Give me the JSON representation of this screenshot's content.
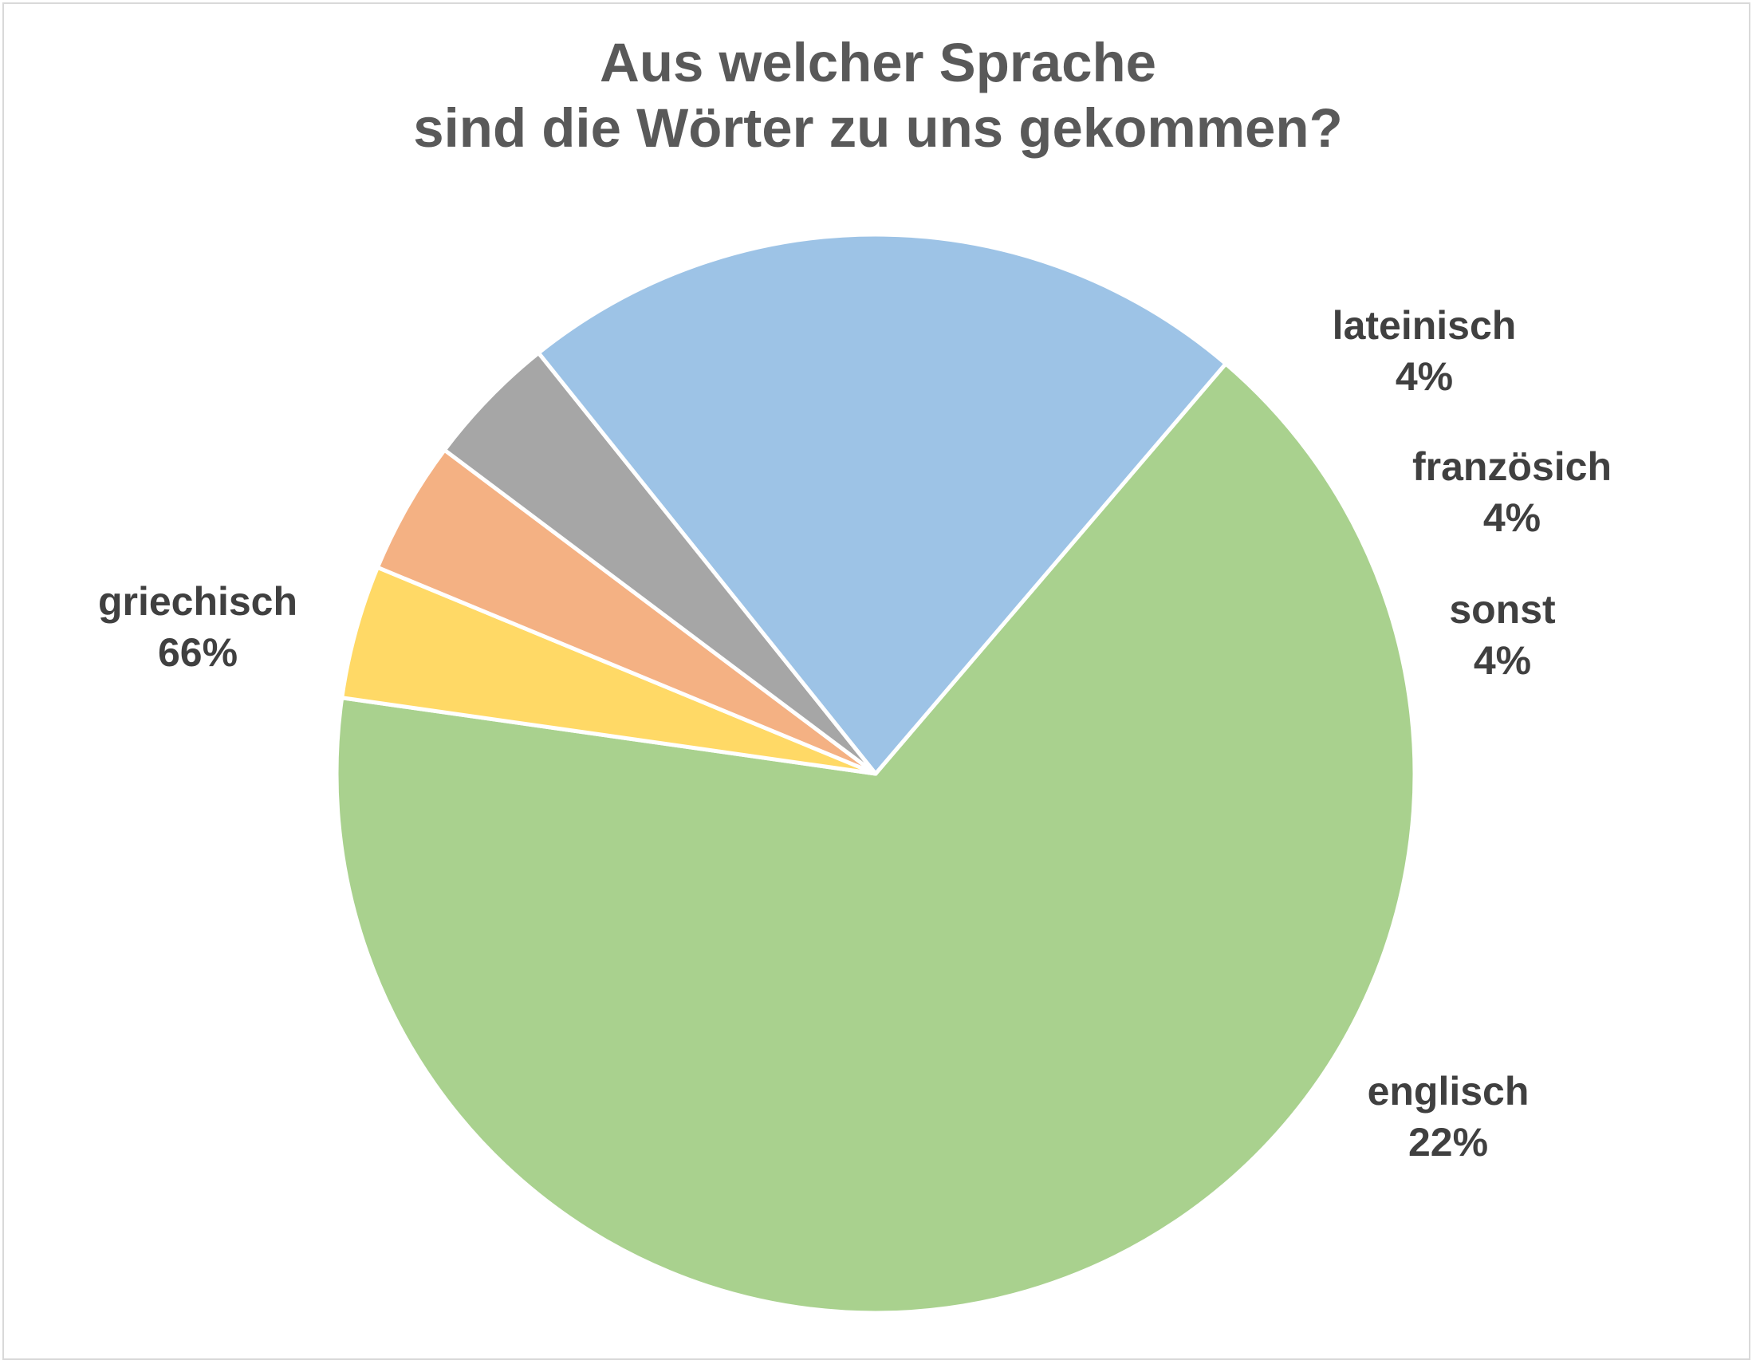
{
  "chart_data": {
    "type": "pie",
    "title_lines": [
      "Aus welcher Sprache",
      "sind die Wörter zu uns gekommen?"
    ],
    "slices": [
      {
        "label": "griechisch",
        "value": 66,
        "value_label": "66%",
        "color": "#a9d18e"
      },
      {
        "label": "lateinisch",
        "value": 4,
        "value_label": "4%",
        "color": "#ffd966"
      },
      {
        "label": "französich",
        "value": 4,
        "value_label": "4%",
        "color": "#f4b183"
      },
      {
        "label": "sonst",
        "value": 4,
        "value_label": "4%",
        "color": "#a6a6a6"
      },
      {
        "label": "englisch",
        "value": 22,
        "value_label": "22%",
        "color": "#9dc3e6"
      }
    ],
    "legend": "none",
    "data_labels": "outside"
  }
}
